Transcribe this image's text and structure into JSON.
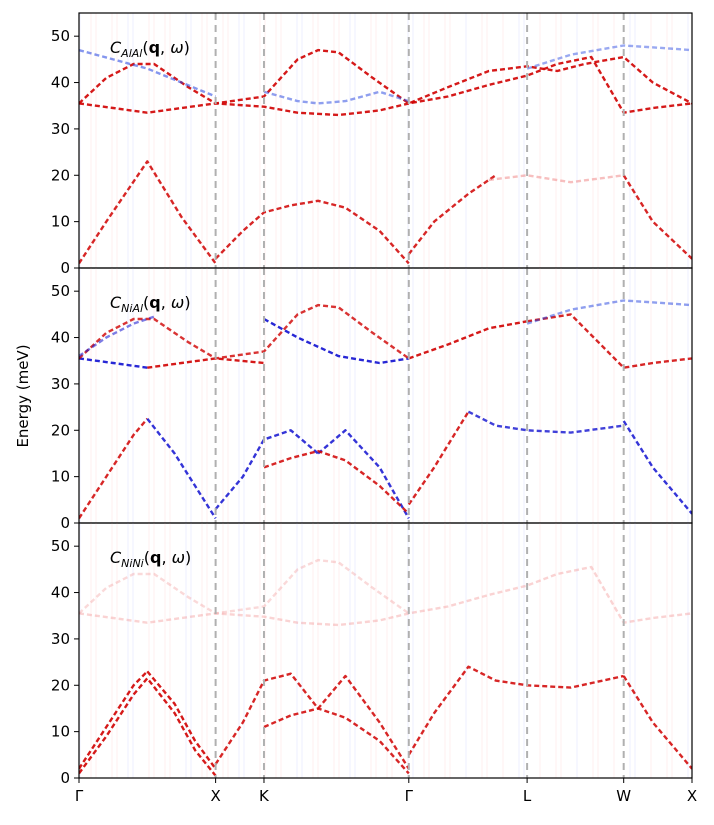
{
  "chart_data": {
    "type": "line",
    "ylabel": "Energy (meV)",
    "ylim": [
      0,
      55
    ],
    "yticks": [
      0,
      10,
      20,
      30,
      40,
      50
    ],
    "x_path_labels": [
      "Γ",
      "X",
      "K",
      "Γ",
      "L",
      "W",
      "X"
    ],
    "x_path_positions": [
      0.0,
      1.0,
      1.354,
      2.414,
      3.28,
      3.987,
      4.487
    ],
    "xlim": [
      0,
      4.487
    ],
    "vline_color": "#b0b0b0",
    "colormap": "bwr",
    "panels": [
      {
        "label_main": "C",
        "label_sub": "AlAl",
        "label_args": "(q, ω)",
        "series": [
          {
            "color": "#d00000",
            "opacity": 0.9,
            "x": [
              0.0,
              0.25,
              0.5,
              0.75,
              1.0,
              1.354,
              1.6,
              1.9,
              2.2,
              2.414,
              2.7,
              3.0,
              3.28,
              3.5,
              3.75,
              3.987,
              4.2,
              4.487
            ],
            "y": [
              35.5,
              34.5,
              33.5,
              34.5,
              35.5,
              34.8,
              33.5,
              33,
              34,
              35.5,
              37,
              39.5,
              41.5,
              44,
              45.5,
              33.5,
              34.5,
              35.5
            ]
          },
          {
            "color": "#d00000",
            "opacity": 0.9,
            "x": [
              0.0,
              0.2,
              0.4,
              0.55,
              0.8,
              1.0,
              1.354,
              1.6,
              1.75,
              1.9,
              2.15,
              2.414,
              2.7,
              3.0,
              3.28,
              3.5,
              3.7,
              3.987,
              4.2,
              4.487
            ],
            "y": [
              35.5,
              41,
              44,
              44,
              39,
              35.5,
              37,
              45,
              47,
              46.5,
              41,
              35.5,
              39,
              42.5,
              43.5,
              42.5,
              44,
              45.5,
              40,
              35.5
            ]
          },
          {
            "color": "#d00000",
            "opacity": 0.85,
            "x": [
              0.0,
              0.2,
              0.5,
              0.75,
              1.0
            ],
            "y": [
              1,
              10,
              23,
              11,
              1
            ]
          },
          {
            "color": "#d00000",
            "opacity": 0.85,
            "x": [
              1.0,
              1.2,
              1.354,
              1.55,
              1.75,
              1.95,
              2.2,
              2.414
            ],
            "y": [
              2,
              8,
              12,
              13.5,
              14.5,
              13,
              8,
              1
            ]
          },
          {
            "color": "#d00000",
            "opacity": 0.85,
            "x": [
              2.414,
              2.6,
              2.85,
              3.05
            ],
            "y": [
              3,
              10,
              16,
              20
            ]
          },
          {
            "color": "#d00000",
            "opacity": 0.85,
            "x": [
              3.987,
              4.2,
              4.487
            ],
            "y": [
              20,
              10,
              2
            ]
          },
          {
            "color": "#f08080",
            "opacity": 0.5,
            "x": [
              3.0,
              3.28,
              3.6,
              3.987
            ],
            "y": [
              19,
              20,
              18.5,
              20
            ]
          },
          {
            "color": "#2040e0",
            "opacity": 0.55,
            "x": [
              0.0,
              0.25,
              0.5,
              0.75,
              1.0
            ],
            "y": [
              47,
              45,
              43,
              40,
              37
            ]
          },
          {
            "color": "#2040e0",
            "opacity": 0.5,
            "x": [
              1.354,
              1.6,
              1.75,
              1.95,
              2.2,
              2.414
            ],
            "y": [
              38,
              36,
              35.5,
              36,
              38,
              36
            ]
          },
          {
            "color": "#2040e0",
            "opacity": 0.45,
            "x": [
              3.28,
              3.6,
              3.987,
              4.25,
              4.487
            ],
            "y": [
              43,
              46,
              48,
              47.5,
              47
            ]
          }
        ]
      },
      {
        "label_main": "C",
        "label_sub": "NiAl",
        "label_args": "(q, ω)",
        "series": [
          {
            "color": "#1010d0",
            "opacity": 0.9,
            "x": [
              0.0,
              0.25,
              0.5
            ],
            "y": [
              35.5,
              34.5,
              33.5
            ]
          },
          {
            "color": "#d00000",
            "opacity": 0.9,
            "x": [
              0.5,
              0.75,
              1.0,
              1.354
            ],
            "y": [
              33.5,
              34.5,
              35.5,
              34.5
            ]
          },
          {
            "color": "#1010d0",
            "opacity": 0.9,
            "x": [
              1.354,
              1.6,
              1.9,
              2.2,
              2.414
            ],
            "y": [
              44,
              40,
              36,
              34.5,
              35.5
            ]
          },
          {
            "color": "#d00000",
            "opacity": 0.9,
            "x": [
              2.414,
              2.7,
              3.0,
              3.28
            ],
            "y": [
              35.5,
              38.5,
              42,
              43.5
            ]
          },
          {
            "color": "#d00000",
            "opacity": 0.85,
            "x": [
              3.28,
              3.6,
              3.987,
              4.2,
              4.487
            ],
            "y": [
              43.5,
              45,
              33.5,
              34.5,
              35.5
            ]
          },
          {
            "color": "#d00000",
            "opacity": 0.8,
            "x": [
              0.0,
              0.2,
              0.4,
              0.55,
              0.8,
              1.0,
              1.354,
              1.6,
              1.75,
              1.9,
              2.15,
              2.414
            ],
            "y": [
              35.5,
              41,
              44,
              44,
              39,
              35.5,
              37,
              45,
              47,
              46.5,
              41,
              35.5
            ]
          },
          {
            "color": "#1010d0",
            "opacity": 0.55,
            "x": [
              0.0,
              0.2,
              0.4,
              0.55
            ],
            "y": [
              36,
              40,
              43,
              44.5
            ]
          },
          {
            "color": "#d00000",
            "opacity": 0.85,
            "x": [
              0.0,
              0.2,
              0.4,
              0.5
            ],
            "y": [
              1,
              10,
              19,
              22.5
            ]
          },
          {
            "color": "#1010d0",
            "opacity": 0.85,
            "x": [
              0.5,
              0.7,
              0.85,
              1.0
            ],
            "y": [
              22.5,
              15,
              8,
              1
            ]
          },
          {
            "color": "#1010d0",
            "opacity": 0.85,
            "x": [
              1.0,
              1.2,
              1.354,
              1.55,
              1.75
            ],
            "y": [
              3,
              10,
              18,
              20,
              15
            ]
          },
          {
            "color": "#1010d0",
            "opacity": 0.85,
            "x": [
              1.75,
              1.95,
              2.2,
              2.414
            ],
            "y": [
              15,
              20,
              12,
              1
            ]
          },
          {
            "color": "#d00000",
            "opacity": 0.85,
            "x": [
              1.354,
              1.55,
              1.75,
              1.95,
              2.2,
              2.414
            ],
            "y": [
              12,
              14,
              15.5,
              13.5,
              8,
              2
            ]
          },
          {
            "color": "#d00000",
            "opacity": 0.85,
            "x": [
              2.414,
              2.6,
              2.85
            ],
            "y": [
              4,
              12,
              24
            ]
          },
          {
            "color": "#1010d0",
            "opacity": 0.8,
            "x": [
              2.85,
              3.05,
              3.28,
              3.6,
              3.987
            ],
            "y": [
              24,
              21,
              20,
              19.5,
              21
            ]
          },
          {
            "color": "#1010d0",
            "opacity": 0.85,
            "x": [
              3.987,
              4.2,
              4.487
            ],
            "y": [
              22,
              12,
              2
            ]
          },
          {
            "color": "#2040e0",
            "opacity": 0.5,
            "x": [
              3.28,
              3.6,
              3.987,
              4.25,
              4.487
            ],
            "y": [
              43,
              46,
              48,
              47.5,
              47
            ]
          }
        ]
      },
      {
        "label_main": "C",
        "label_sub": "NiNi",
        "label_args": "(q, ω)",
        "series": [
          {
            "color": "#d00000",
            "opacity": 0.9,
            "x": [
              0.0,
              0.2,
              0.4,
              0.5
            ],
            "y": [
              2,
              11,
              20,
              23
            ]
          },
          {
            "color": "#d00000",
            "opacity": 0.9,
            "x": [
              0.5,
              0.7,
              0.85,
              1.0
            ],
            "y": [
              23,
              16,
              8,
              2
            ]
          },
          {
            "color": "#d00000",
            "opacity": 0.9,
            "x": [
              0.0,
              0.2,
              0.4,
              0.5,
              0.7,
              0.85,
              1.0
            ],
            "y": [
              1,
              9,
              18,
              21.5,
              14,
              6,
              0.5
            ]
          },
          {
            "color": "#d00000",
            "opacity": 0.85,
            "x": [
              1.0,
              1.2,
              1.354,
              1.55,
              1.75,
              1.95,
              2.2,
              2.414
            ],
            "y": [
              3,
              12,
              21,
              22.5,
              15,
              22,
              12,
              2
            ]
          },
          {
            "color": "#d00000",
            "opacity": 0.85,
            "x": [
              1.354,
              1.55,
              1.75,
              1.95,
              2.2,
              2.414
            ],
            "y": [
              11,
              13.5,
              15,
              13,
              8,
              1
            ]
          },
          {
            "color": "#d00000",
            "opacity": 0.85,
            "x": [
              2.414,
              2.6,
              2.85,
              3.05,
              3.28,
              3.6,
              3.987
            ],
            "y": [
              5,
              14,
              24,
              21,
              20,
              19.5,
              22
            ]
          },
          {
            "color": "#d00000",
            "opacity": 0.85,
            "x": [
              3.987,
              4.2,
              4.487
            ],
            "y": [
              22,
              12,
              2
            ]
          },
          {
            "color": "#f08080",
            "opacity": 0.35,
            "x": [
              0.0,
              0.25,
              0.5,
              0.75,
              1.0,
              1.354,
              1.6,
              1.9,
              2.2,
              2.414,
              2.7,
              3.0,
              3.28,
              3.5,
              3.75,
              3.987,
              4.2,
              4.487
            ],
            "y": [
              35.5,
              34.5,
              33.5,
              34.5,
              35.5,
              34.8,
              33.5,
              33,
              34,
              35.5,
              37,
              39.5,
              41.5,
              44,
              45.5,
              33.5,
              34.5,
              35.5
            ]
          },
          {
            "color": "#f08080",
            "opacity": 0.3,
            "x": [
              0.0,
              0.2,
              0.4,
              0.55,
              0.8,
              1.0,
              1.354,
              1.6,
              1.75,
              1.9,
              2.15,
              2.414
            ],
            "y": [
              35.5,
              41,
              44,
              44,
              39,
              35.5,
              37,
              45,
              47,
              46.5,
              41,
              35.5
            ]
          }
        ]
      }
    ]
  }
}
